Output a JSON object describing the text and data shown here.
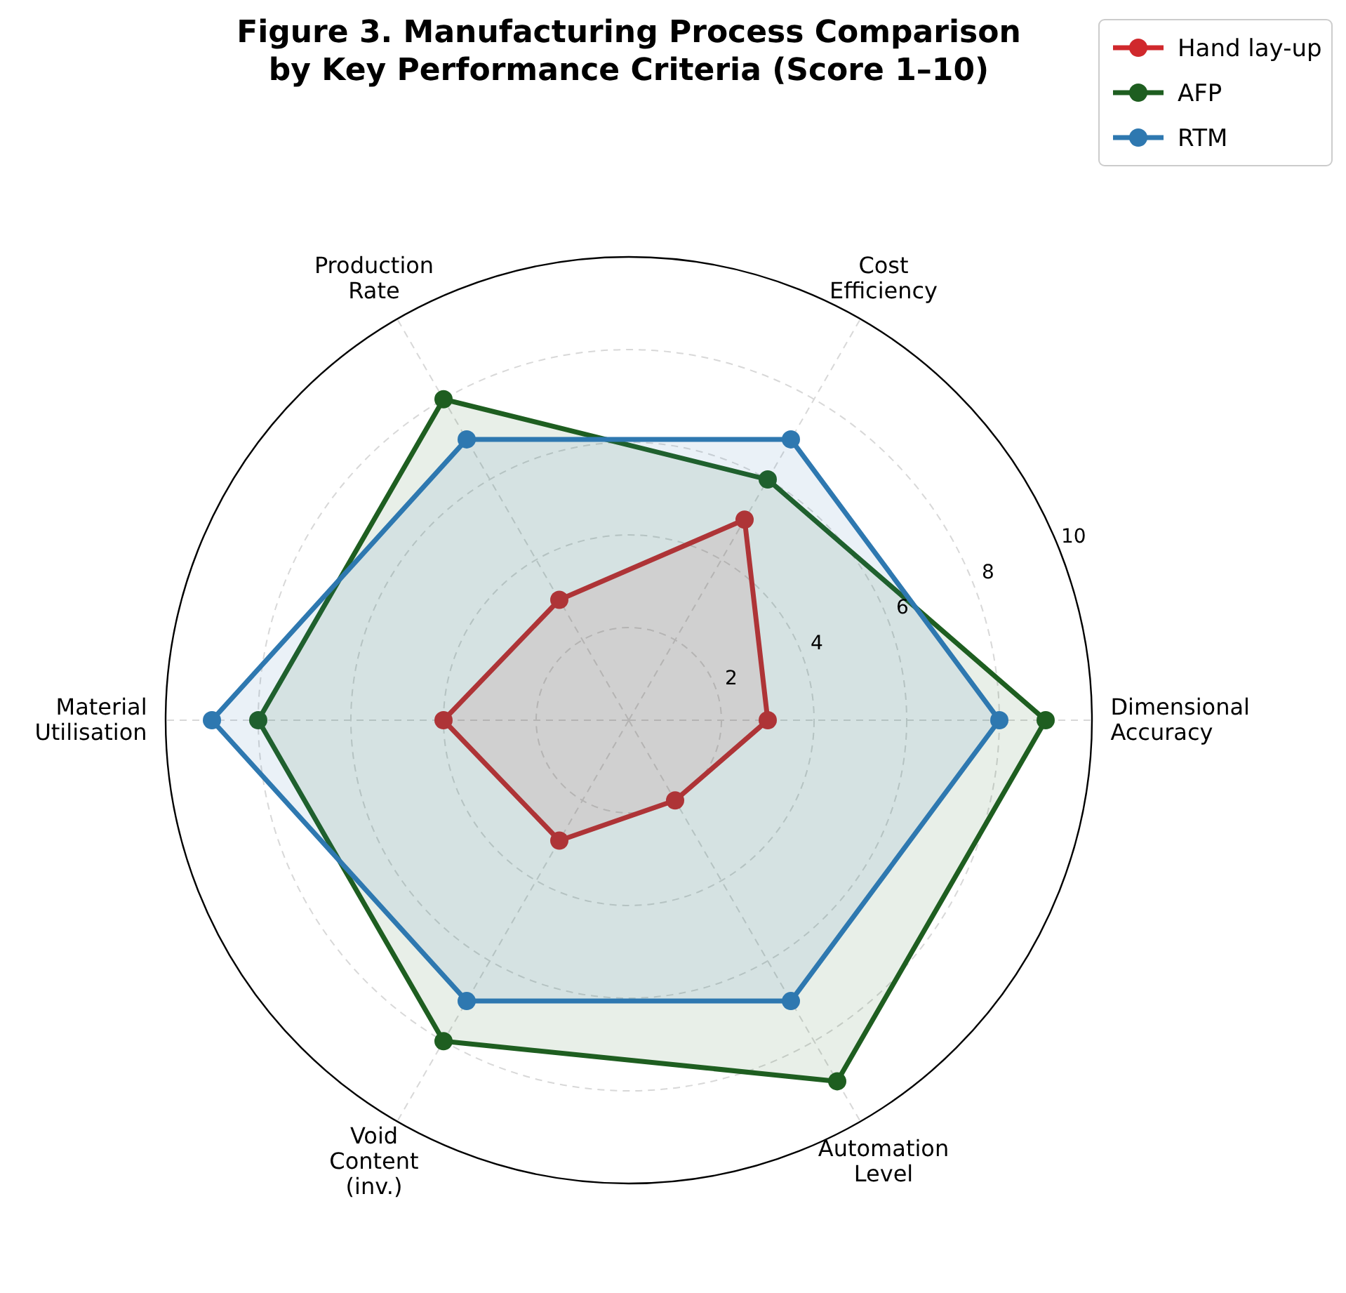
{
  "chart_data": {
    "type": "radar",
    "title": "Figure 3. Manufacturing Process Comparison\nby Key Performance Criteria (Score 1–10)",
    "categories": [
      "Cost\nEfficiency",
      "Dimensional\nAccuracy",
      "Automation\nLevel",
      "Void\nContent\n(inv.)",
      "Material\nUtilisation",
      "Production\nRate"
    ],
    "series": [
      {
        "name": "Hand lay-up",
        "color": "#d0282c",
        "values": [
          5,
          3,
          2,
          3,
          4,
          3
        ]
      },
      {
        "name": "AFP",
        "color": "#1e5e20",
        "values": [
          6,
          9,
          9,
          8,
          8,
          8
        ]
      },
      {
        "name": "RTM",
        "color": "#2e78b0",
        "values": [
          7,
          8,
          7,
          7,
          9,
          7
        ]
      }
    ],
    "ylim": [
      0,
      10
    ],
    "yticks": [
      2,
      4,
      6,
      8,
      10
    ],
    "grid": true,
    "marker": "circle",
    "legend": "top right"
  }
}
